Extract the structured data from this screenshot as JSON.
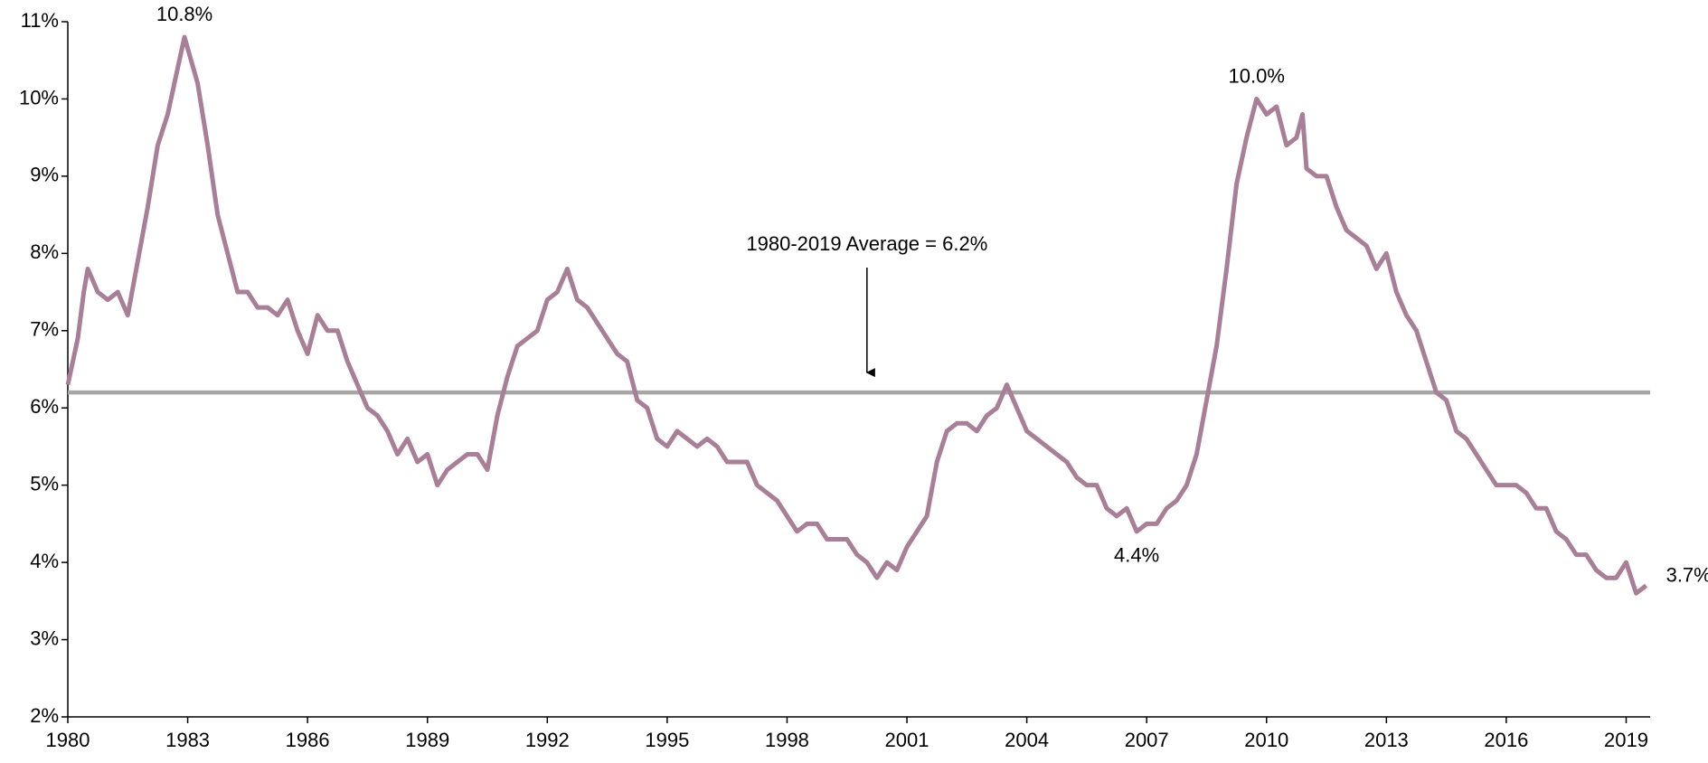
{
  "chart_data": {
    "type": "line",
    "x": [
      1980,
      1980.25,
      1980.4,
      1980.5,
      1980.75,
      1981,
      1981.25,
      1981.5,
      1981.75,
      1982,
      1982.25,
      1982.5,
      1982.75,
      1982.92,
      1983.25,
      1983.5,
      1983.75,
      1984,
      1984.25,
      1984.5,
      1984.75,
      1985,
      1985.25,
      1985.5,
      1985.75,
      1986,
      1986.25,
      1986.5,
      1986.75,
      1987,
      1987.25,
      1987.5,
      1987.75,
      1988,
      1988.25,
      1988.5,
      1988.75,
      1989,
      1989.25,
      1989.5,
      1989.75,
      1990,
      1990.25,
      1990.5,
      1990.75,
      1991,
      1991.25,
      1991.5,
      1991.75,
      1992,
      1992.25,
      1992.5,
      1992.75,
      1993,
      1993.25,
      1993.5,
      1993.75,
      1994,
      1994.25,
      1994.5,
      1994.75,
      1995,
      1995.25,
      1995.5,
      1995.75,
      1996,
      1996.25,
      1996.5,
      1996.75,
      1997,
      1997.25,
      1997.5,
      1997.75,
      1998,
      1998.25,
      1998.5,
      1998.75,
      1999,
      1999.25,
      1999.5,
      1999.75,
      2000,
      2000.25,
      2000.5,
      2000.75,
      2001,
      2001.25,
      2001.5,
      2001.75,
      2002,
      2002.25,
      2002.5,
      2002.75,
      2003,
      2003.25,
      2003.5,
      2003.75,
      2004,
      2004.25,
      2004.5,
      2004.75,
      2005,
      2005.25,
      2005.5,
      2005.75,
      2006,
      2006.25,
      2006.5,
      2006.75,
      2007,
      2007.25,
      2007.5,
      2007.75,
      2008,
      2008.25,
      2008.5,
      2008.75,
      2009,
      2009.25,
      2009.5,
      2009.75,
      2010,
      2010.25,
      2010.5,
      2010.75,
      2010.9,
      2011,
      2011.25,
      2011.5,
      2011.75,
      2012,
      2012.25,
      2012.5,
      2012.75,
      2013,
      2013.25,
      2013.5,
      2013.75,
      2014,
      2014.25,
      2014.5,
      2014.75,
      2015,
      2015.25,
      2015.5,
      2015.75,
      2016,
      2016.25,
      2016.5,
      2016.75,
      2017,
      2017.25,
      2017.5,
      2017.75,
      2018,
      2018.25,
      2018.5,
      2018.75,
      2019,
      2019.25,
      2019.5
    ],
    "values": [
      6.3,
      6.9,
      7.5,
      7.8,
      7.5,
      7.4,
      7.5,
      7.2,
      7.9,
      8.6,
      9.4,
      9.8,
      10.4,
      10.8,
      10.2,
      9.4,
      8.5,
      8.0,
      7.5,
      7.5,
      7.3,
      7.3,
      7.2,
      7.4,
      7.0,
      6.7,
      7.2,
      7.0,
      7.0,
      6.6,
      6.3,
      6.0,
      5.9,
      5.7,
      5.4,
      5.6,
      5.3,
      5.4,
      5.0,
      5.2,
      5.3,
      5.4,
      5.4,
      5.2,
      5.9,
      6.4,
      6.8,
      6.9,
      7.0,
      7.4,
      7.5,
      7.8,
      7.4,
      7.3,
      7.1,
      6.9,
      6.7,
      6.6,
      6.1,
      6.0,
      5.6,
      5.5,
      5.7,
      5.6,
      5.5,
      5.6,
      5.5,
      5.3,
      5.3,
      5.3,
      5.0,
      4.9,
      4.8,
      4.6,
      4.4,
      4.5,
      4.5,
      4.3,
      4.3,
      4.3,
      4.1,
      4.0,
      3.8,
      4.0,
      3.9,
      4.2,
      4.4,
      4.6,
      5.3,
      5.7,
      5.8,
      5.8,
      5.7,
      5.9,
      6.0,
      6.3,
      6.0,
      5.7,
      5.6,
      5.5,
      5.4,
      5.3,
      5.1,
      5.0,
      5.0,
      4.7,
      4.6,
      4.7,
      4.4,
      4.5,
      4.5,
      4.7,
      4.8,
      5.0,
      5.4,
      6.1,
      6.8,
      7.8,
      8.9,
      9.5,
      10.0,
      9.8,
      9.9,
      9.4,
      9.5,
      9.8,
      9.1,
      9.0,
      9.0,
      8.6,
      8.3,
      8.2,
      8.1,
      7.8,
      8.0,
      7.5,
      7.2,
      7.0,
      6.6,
      6.2,
      6.1,
      5.7,
      5.6,
      5.4,
      5.2,
      5.0,
      5.0,
      5.0,
      4.9,
      4.7,
      4.7,
      4.4,
      4.3,
      4.1,
      4.1,
      3.9,
      3.8,
      3.8,
      4.0,
      3.6,
      3.7
    ],
    "color": "#a87f96",
    "average": {
      "label": "1980-2019 Average = 6.2%",
      "value": 6.2,
      "x": 2000,
      "color": "#a6a6a6"
    },
    "annotations": [
      {
        "label": "10.8%",
        "x": 1982.92,
        "y": 10.8,
        "position": "above"
      },
      {
        "label": "10.0%",
        "x": 2009.75,
        "y": 10.0,
        "position": "above"
      },
      {
        "label": "4.4%",
        "x": 2006.75,
        "y": 4.4,
        "position": "below"
      },
      {
        "label": "3.7%",
        "x": 2019.5,
        "y": 3.7,
        "position": "right"
      }
    ],
    "xlim": [
      1980,
      2019.6
    ],
    "xticks": [
      1980,
      1983,
      1986,
      1989,
      1992,
      1995,
      1998,
      2001,
      2004,
      2007,
      2010,
      2013,
      2016,
      2019
    ],
    "ylim": [
      2,
      11
    ],
    "yticks": [
      {
        "value": 2,
        "label": "2%"
      },
      {
        "value": 3,
        "label": "3%"
      },
      {
        "value": 4,
        "label": "4%"
      },
      {
        "value": 5,
        "label": "5%"
      },
      {
        "value": 6,
        "label": "6%"
      },
      {
        "value": 7,
        "label": "7%"
      },
      {
        "value": 8,
        "label": "8%"
      },
      {
        "value": 9,
        "label": "9%"
      },
      {
        "value": 10,
        "label": "10%"
      },
      {
        "value": 11,
        "label": "11%"
      }
    ]
  }
}
